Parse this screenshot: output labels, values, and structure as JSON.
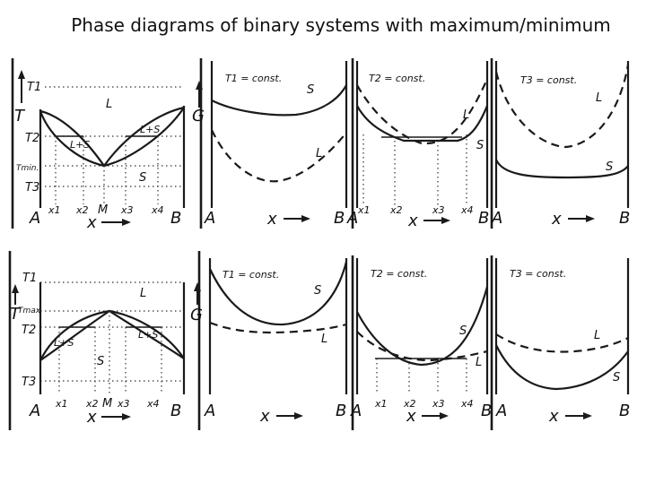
{
  "title": "Phase diagrams of binary systems with maximum/minimum",
  "top_row": {
    "phase": {
      "T1": "T1",
      "T": "T",
      "T2": "T2",
      "Tmin": "Tmin.",
      "T3": "T3",
      "L": "L",
      "LS_left": "L+S",
      "LS_right": "L+S",
      "S": "S",
      "x1": "x1",
      "x2": "x2",
      "M": "M",
      "x3": "x3",
      "x4": "x4",
      "A": "A",
      "B": "B",
      "x": "x"
    },
    "g1": {
      "const": "T1 = const.",
      "G": "G",
      "S": "S",
      "L": "L",
      "A": "A",
      "B": "B",
      "x": "x"
    },
    "g2": {
      "const": "T2 = const.",
      "L": "L",
      "S": "S",
      "x1": "x1",
      "x2": "x2",
      "x3": "x3",
      "x4": "x4",
      "A": "A",
      "B": "B",
      "x": "x"
    },
    "g3": {
      "const": "T3 = const.",
      "L": "L",
      "S": "S",
      "A": "A",
      "B": "B",
      "x": "x"
    }
  },
  "bottom_row": {
    "phase": {
      "T1": "T1",
      "T": "T",
      "Tmax": "Tmax",
      "T2": "T2",
      "T3": "T3",
      "L": "L",
      "LS_left": "L+S",
      "LS_right": "L+S",
      "S": "S",
      "x1": "x1",
      "x2": "x2",
      "M": "M",
      "x3": "x3",
      "x4": "x4",
      "A": "A",
      "B": "B",
      "x": "x"
    },
    "g1": {
      "const": "T1 = const.",
      "G": "G",
      "S": "S",
      "L": "L",
      "A": "A",
      "B": "B",
      "x": "x"
    },
    "g2": {
      "const": "T2 = const.",
      "S": "S",
      "L": "L",
      "x1": "x1",
      "x2": "x2",
      "x3": "x3",
      "x4": "x4",
      "A": "A",
      "B": "B",
      "x": "x"
    },
    "g3": {
      "const": "T3 = const.",
      "L": "L",
      "S": "S",
      "A": "A",
      "B": "B",
      "x": "x"
    }
  }
}
